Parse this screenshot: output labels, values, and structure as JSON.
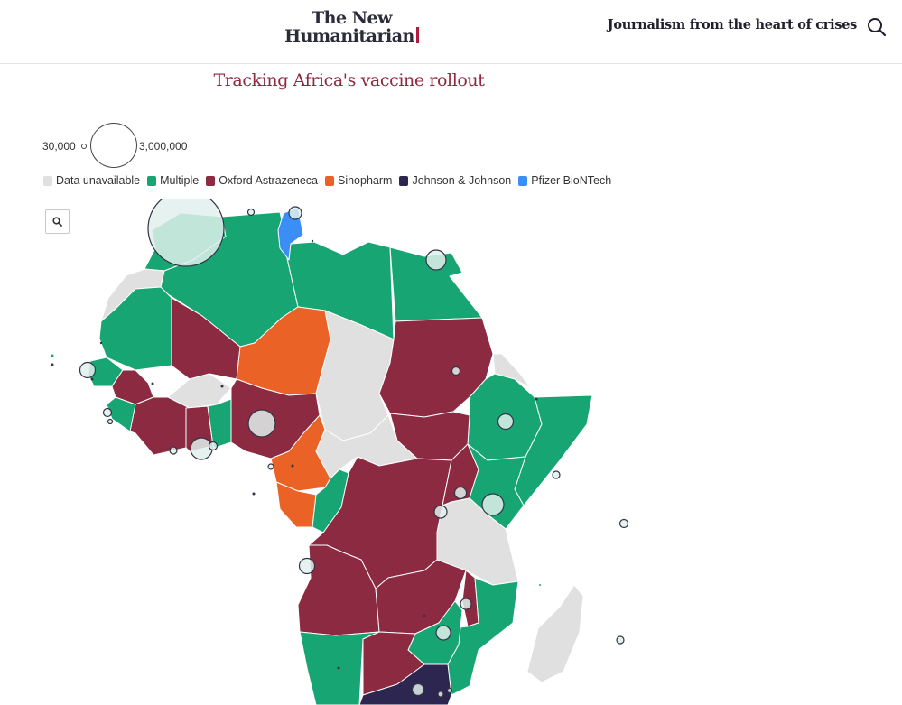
{
  "header": {
    "logo_line1": "The New",
    "logo_line2": "Humanitarian",
    "tagline": "Journalism from the heart of crises"
  },
  "map": {
    "title": "Tracking Africa's vaccine rollout",
    "size_legend": {
      "small_label": "30,000",
      "large_label": "3,000,000"
    },
    "legend": [
      {
        "label": "Data unavailable",
        "color": "#e0e0e0"
      },
      {
        "label": "Multiple",
        "color": "#17a673"
      },
      {
        "label": "Oxford Astrazeneca",
        "color": "#8b2a40"
      },
      {
        "label": "Sinopharm",
        "color": "#ea6226"
      },
      {
        "label": "Johnson & Johnson",
        "color": "#2c2650"
      },
      {
        "label": "Pfizer BioNTech",
        "color": "#3b8ef5"
      }
    ],
    "icons": {
      "header_search": "search-icon",
      "zoom": "zoom-icon"
    }
  }
}
